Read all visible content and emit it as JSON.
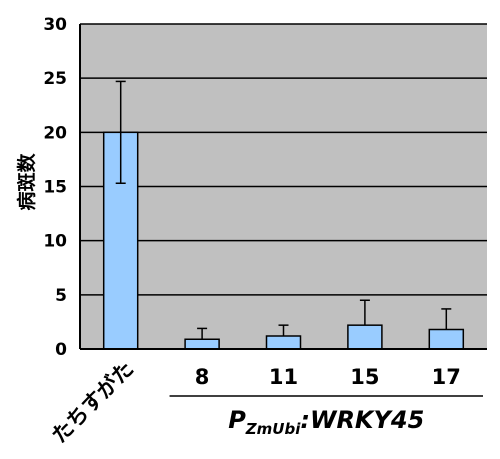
{
  "chart_data": {
    "type": "bar",
    "ylabel": "病斑数",
    "ylim": [
      0,
      30
    ],
    "yticks": [
      "0",
      "5",
      "10",
      "15",
      "20",
      "25",
      "30"
    ],
    "categories": [
      "たちすがた",
      "8",
      "11",
      "15",
      "17"
    ],
    "values": [
      20,
      0.9,
      1.2,
      2.2,
      1.8
    ],
    "error_high": [
      24.7,
      1.9,
      2.2,
      4.5,
      3.7
    ],
    "error_low": [
      15.3,
      0.9,
      1.2,
      2.2,
      1.8
    ],
    "grid": true,
    "group_label": {
      "prefix": "P",
      "subscript": "ZmUbi",
      "suffix": ":WRKY45"
    },
    "colors": {
      "plot_background": "#c0c0c0",
      "bar_fill": "#99ccff",
      "bar_stroke": "#000000",
      "gridline": "#000000"
    }
  }
}
